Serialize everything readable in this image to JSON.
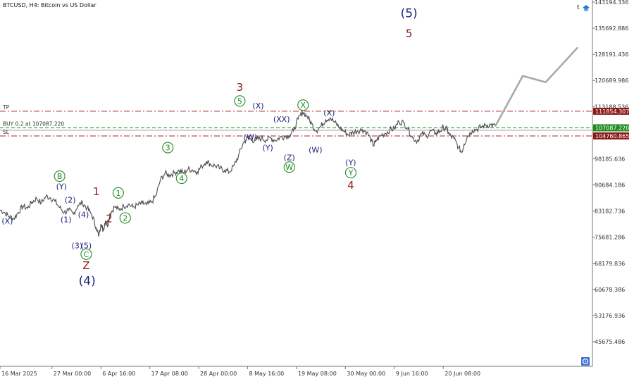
{
  "header": {
    "title": "BTCUSD, H4:  Bitcoin vs US Dollar",
    "corner_letter": "t"
  },
  "icons": {
    "corner": "hat-icon",
    "bottom_right": "target-circle-icon"
  },
  "colors": {
    "price_line": "#4d4d4d",
    "projection": "#a9a9a9",
    "blue_label": "#1a237e",
    "dark_red_label": "#8b1a1a",
    "green_label": "#228b22",
    "tp_line": "#b22222",
    "buy_line": "#1f8b1f",
    "tp_tag_bg": "#8b1a1a",
    "buy_tag_bg": "#1f8b1f",
    "sl_tag_bg": "#8b1a1a",
    "axis_text": "#333333"
  },
  "chart_data": {
    "type": "line",
    "symbol": "BTCUSD",
    "timeframe": "H4",
    "ylim": [
      40000,
      145000
    ],
    "y_ticks": [
      {
        "label": "143194.336",
        "value": 143194.336
      },
      {
        "label": "135692.886",
        "value": 135692.886
      },
      {
        "label": "128191.436",
        "value": 128191.436
      },
      {
        "label": "120689.986",
        "value": 120689.986
      },
      {
        "label": "113188.536",
        "value": 113188.536
      },
      {
        "label": "98185.636",
        "value": 98185.636
      },
      {
        "label": "90684.186",
        "value": 90684.186
      },
      {
        "label": "83182.736",
        "value": 83182.736
      },
      {
        "label": "75681.286",
        "value": 75681.286
      },
      {
        "label": "68179.836",
        "value": 68179.836
      },
      {
        "label": "60678.386",
        "value": 60678.386
      },
      {
        "label": "53176.936",
        "value": 53176.936
      },
      {
        "label": "45675.486",
        "value": 45675.486
      }
    ],
    "x_ticks": [
      {
        "label": "16 Mar 2025",
        "x": 0
      },
      {
        "label": "27 Mar 00:00",
        "x": 11.33
      },
      {
        "label": "6 Apr 16:00",
        "x": 22
      },
      {
        "label": "17 Apr 08:00",
        "x": 32.67
      },
      {
        "label": "28 Apr 00:00",
        "x": 43.33
      },
      {
        "label": "8 May 16:00",
        "x": 54
      },
      {
        "label": "19 May 08:00",
        "x": 64.67
      },
      {
        "label": "30 May 00:00",
        "x": 75.33
      },
      {
        "label": "9 Jun 16:00",
        "x": 86
      },
      {
        "label": "20 Jun 08:00",
        "x": 96.67
      }
    ],
    "x_unit": "days since 16 Mar 2025",
    "series": [
      {
        "points": [
          [
            0,
            83500
          ],
          [
            1,
            82800
          ],
          [
            2,
            81600
          ],
          [
            3,
            81000
          ],
          [
            4,
            82800
          ],
          [
            5,
            84600
          ],
          [
            6,
            84000
          ],
          [
            7,
            85800
          ],
          [
            8,
            86800
          ],
          [
            9,
            85500
          ],
          [
            10,
            87400
          ],
          [
            11,
            87000
          ],
          [
            12,
            86000
          ],
          [
            13,
            84200
          ],
          [
            14,
            82800
          ],
          [
            15,
            83400
          ],
          [
            16,
            82300
          ],
          [
            17,
            84800
          ],
          [
            18,
            85600
          ],
          [
            19,
            84000
          ],
          [
            20,
            82200
          ],
          [
            21,
            78400
          ],
          [
            21.5,
            76000
          ],
          [
            22,
            79500
          ],
          [
            22.5,
            77600
          ],
          [
            23,
            80500
          ],
          [
            23.5,
            79000
          ],
          [
            24,
            82500
          ],
          [
            25,
            84400
          ],
          [
            26,
            83500
          ],
          [
            27,
            84600
          ],
          [
            28,
            85200
          ],
          [
            29,
            84300
          ],
          [
            30,
            84900
          ],
          [
            31,
            85400
          ],
          [
            32,
            85000
          ],
          [
            33,
            85700
          ],
          [
            34,
            87600
          ],
          [
            35,
            92200
          ],
          [
            36,
            94000
          ],
          [
            37,
            93500
          ],
          [
            38,
            94200
          ],
          [
            39,
            94800
          ],
          [
            40,
            94200
          ],
          [
            41,
            95200
          ],
          [
            42,
            95000
          ],
          [
            43,
            94500
          ],
          [
            44,
            96000
          ],
          [
            45,
            97500
          ],
          [
            46,
            96500
          ],
          [
            47,
            96200
          ],
          [
            48,
            95400
          ],
          [
            49,
            94900
          ],
          [
            50,
            94400
          ],
          [
            51,
            96200
          ],
          [
            52,
            99000
          ],
          [
            53,
            102600
          ],
          [
            54,
            104300
          ],
          [
            55,
            103500
          ],
          [
            56,
            103800
          ],
          [
            57,
            104100
          ],
          [
            58,
            103600
          ],
          [
            59,
            104200
          ],
          [
            60,
            103500
          ],
          [
            61,
            104300
          ],
          [
            62,
            104600
          ],
          [
            63,
            104900
          ],
          [
            64,
            106200
          ],
          [
            65,
            109600
          ],
          [
            66,
            111600
          ],
          [
            67,
            110400
          ],
          [
            68,
            108200
          ],
          [
            69,
            106200
          ],
          [
            70,
            107600
          ],
          [
            71,
            109400
          ],
          [
            72,
            110000
          ],
          [
            73,
            108600
          ],
          [
            74,
            107300
          ],
          [
            75,
            106100
          ],
          [
            76,
            105100
          ],
          [
            77,
            105800
          ],
          [
            78,
            106200
          ],
          [
            79,
            106600
          ],
          [
            80,
            105800
          ],
          [
            81,
            103400
          ],
          [
            81.5,
            101900
          ],
          [
            82,
            103400
          ],
          [
            83,
            104800
          ],
          [
            84,
            105500
          ],
          [
            85,
            106400
          ],
          [
            86,
            106900
          ],
          [
            87,
            108900
          ],
          [
            88,
            108600
          ],
          [
            89,
            106800
          ],
          [
            90,
            104200
          ],
          [
            91,
            103300
          ],
          [
            92,
            105400
          ],
          [
            93,
            104800
          ],
          [
            94,
            106200
          ],
          [
            95,
            105600
          ],
          [
            96,
            106100
          ],
          [
            96.7,
            107300
          ],
          [
            97.5,
            106600
          ],
          [
            98,
            105000
          ],
          [
            99,
            104000
          ],
          [
            100,
            101500
          ],
          [
            100.7,
            100000
          ],
          [
            101.2,
            102400
          ],
          [
            102,
            104800
          ],
          [
            103,
            106300
          ],
          [
            104,
            106700
          ],
          [
            105,
            107400
          ],
          [
            106,
            107800
          ],
          [
            107,
            108000
          ],
          [
            108,
            107500
          ]
        ]
      }
    ],
    "projection": {
      "points": [
        [
          108,
          107500
        ],
        [
          114,
          122000
        ],
        [
          119,
          120200
        ],
        [
          126,
          130200
        ]
      ]
    },
    "levels": [
      {
        "label": "TP",
        "value": 111854.307,
        "tag": "111854.307",
        "style": "dashdot"
      },
      {
        "label": "BUY 0.2 at 107087.220",
        "value": 107087.22,
        "tag": "107087.220",
        "style": "dashed"
      },
      {
        "label": "",
        "value": 106400,
        "tag": "",
        "style": "solid"
      },
      {
        "label": "SL",
        "value": 104760.865,
        "tag": "104760.865",
        "style": "dashdot"
      }
    ],
    "wave_labels": [
      {
        "text": "(X)",
        "x": 1.6,
        "y": 79600,
        "color": "blue",
        "size": "s"
      },
      {
        "text": "(1)",
        "x": 14.4,
        "y": 80000,
        "color": "blue",
        "size": "s"
      },
      {
        "text": "(2)",
        "x": 15.3,
        "y": 85600,
        "color": "blue",
        "size": "s"
      },
      {
        "text": "B",
        "x": 13.0,
        "y": 92400,
        "color": "green",
        "size": "s",
        "circled": true
      },
      {
        "text": "(Y)",
        "x": 13.4,
        "y": 89500,
        "color": "blue",
        "size": "s"
      },
      {
        "text": "(4)",
        "x": 18.2,
        "y": 81400,
        "color": "blue",
        "size": "s"
      },
      {
        "text": "(3)",
        "x": 16.8,
        "y": 72500,
        "color": "blue",
        "size": "s"
      },
      {
        "text": "(5)",
        "x": 18.8,
        "y": 72500,
        "color": "blue",
        "size": "s"
      },
      {
        "text": "C",
        "x": 18.8,
        "y": 70000,
        "color": "green",
        "size": "s",
        "circled": true
      },
      {
        "text": "Z",
        "x": 18.8,
        "y": 66500,
        "color": "darkred",
        "size": "m"
      },
      {
        "text": "(4)",
        "x": 19.0,
        "y": 62000,
        "color": "blue",
        "size": "l"
      },
      {
        "text": "1",
        "x": 21.0,
        "y": 87800,
        "color": "darkred",
        "size": "m"
      },
      {
        "text": "2",
        "x": 23.8,
        "y": 80000,
        "color": "darkred",
        "size": "m"
      },
      {
        "text": "1",
        "x": 25.8,
        "y": 87600,
        "color": "green",
        "size": "s",
        "circled": true
      },
      {
        "text": "2",
        "x": 27.3,
        "y": 80400,
        "color": "green",
        "size": "s",
        "circled": true
      },
      {
        "text": "3",
        "x": 36.6,
        "y": 100600,
        "color": "green",
        "size": "s",
        "circled": true
      },
      {
        "text": "4",
        "x": 39.6,
        "y": 91800,
        "color": "green",
        "size": "s",
        "circled": true
      },
      {
        "text": "3",
        "x": 52.3,
        "y": 117700,
        "color": "darkred",
        "size": "m"
      },
      {
        "text": "5",
        "x": 52.3,
        "y": 114000,
        "color": "green",
        "size": "s",
        "circled": true
      },
      {
        "text": "(W)",
        "x": 54.6,
        "y": 103600,
        "color": "blue",
        "size": "s"
      },
      {
        "text": "(X)",
        "x": 56.3,
        "y": 112600,
        "color": "blue",
        "size": "s"
      },
      {
        "text": "(Y)",
        "x": 58.4,
        "y": 100600,
        "color": "blue",
        "size": "s"
      },
      {
        "text": "(XX)",
        "x": 61.4,
        "y": 108800,
        "color": "blue",
        "size": "s"
      },
      {
        "text": "(Z)",
        "x": 63.1,
        "y": 97800,
        "color": "blue",
        "size": "s"
      },
      {
        "text": "W",
        "x": 63.1,
        "y": 95000,
        "color": "green",
        "size": "s",
        "circled": true
      },
      {
        "text": "X",
        "x": 66.1,
        "y": 112800,
        "color": "green",
        "size": "s",
        "circled": true
      },
      {
        "text": "(W)",
        "x": 68.8,
        "y": 100000,
        "color": "blue",
        "size": "s"
      },
      {
        "text": "(X)",
        "x": 71.8,
        "y": 110600,
        "color": "blue",
        "size": "s"
      },
      {
        "text": "(Y)",
        "x": 76.5,
        "y": 96400,
        "color": "blue",
        "size": "s"
      },
      {
        "text": "Y",
        "x": 76.5,
        "y": 93400,
        "color": "green",
        "size": "s",
        "circled": true
      },
      {
        "text": "4",
        "x": 76.5,
        "y": 89600,
        "color": "darkred",
        "size": "m"
      },
      {
        "text": "(5)",
        "x": 89.2,
        "y": 138800,
        "color": "blue",
        "size": "l"
      },
      {
        "text": "5",
        "x": 89.2,
        "y": 133200,
        "color": "darkred",
        "size": "m"
      }
    ]
  }
}
